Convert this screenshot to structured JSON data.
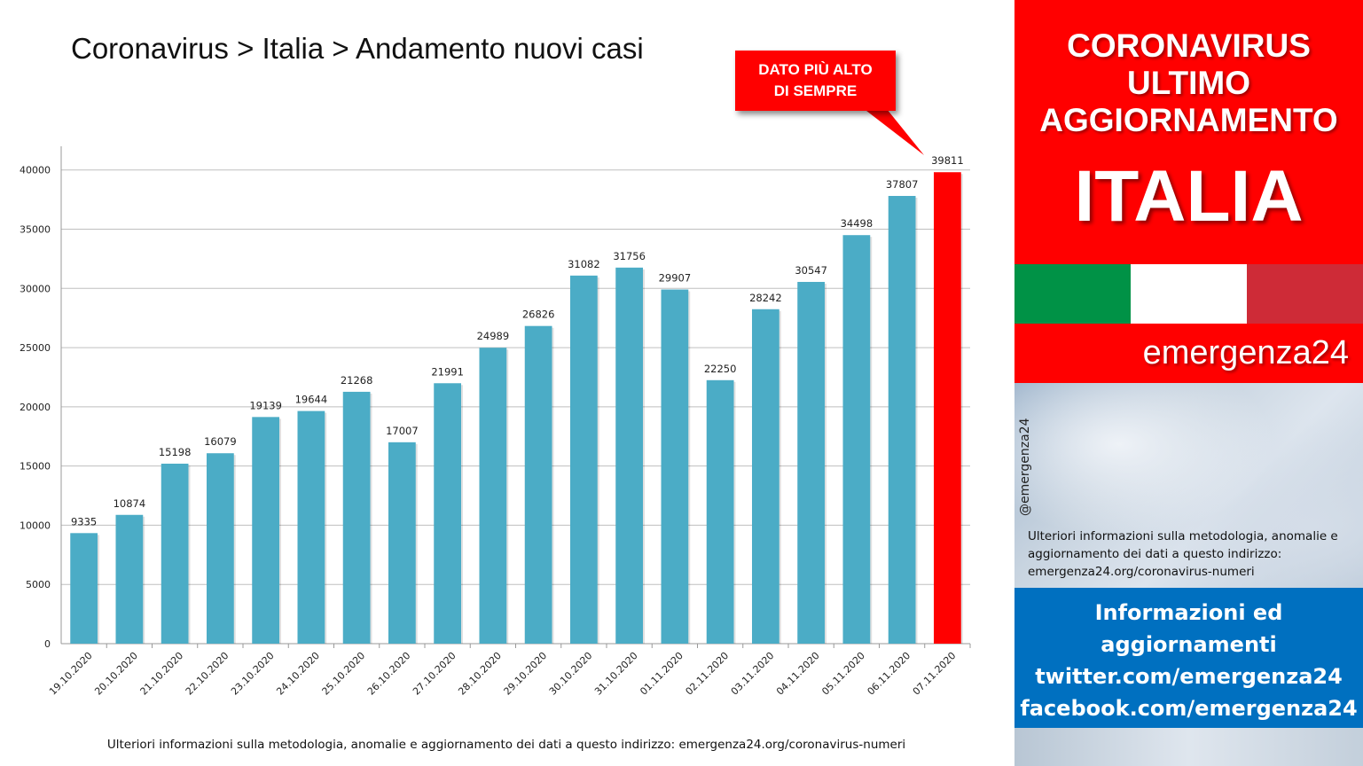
{
  "chart_data": {
    "type": "bar",
    "title": "Coronavirus > Italia > Andamento nuovi casi",
    "categories": [
      "19.10.2020",
      "20.10.2020",
      "21.10.2020",
      "22.10.2020",
      "23.10.2020",
      "24.10.2020",
      "25.10.2020",
      "26.10.2020",
      "27.10.2020",
      "28.10.2020",
      "29.10.2020",
      "30.10.2020",
      "31.10.2020",
      "01.11.2020",
      "02.11.2020",
      "03.11.2020",
      "04.11.2020",
      "05.11.2020",
      "06.11.2020",
      "07.11.2020"
    ],
    "values": [
      9335,
      10874,
      15198,
      16079,
      19139,
      19644,
      21268,
      17007,
      21991,
      24989,
      26826,
      31082,
      31756,
      29907,
      22250,
      28242,
      30547,
      34498,
      37807,
      39811
    ],
    "y_ticks": [
      0,
      5000,
      10000,
      15000,
      20000,
      25000,
      30000,
      35000,
      40000
    ],
    "ylim": [
      0,
      42000
    ],
    "grid": true,
    "bar_color": "#4bacc6",
    "highlight_index": 19,
    "highlight_color": "#ff0000",
    "annotation": {
      "line1": "DATO PIÙ ALTO",
      "line2": "DI SEMPRE"
    }
  },
  "footer_note": "Ulteriori informazioni sulla metodologia, anomalie e aggiornamento dei dati a questo indirizzo: emergenza24.org/coronavirus-numeri",
  "panel": {
    "title_lines": [
      "CORONAVIRUS",
      "ULTIMO",
      "AGGIORNAMENTO"
    ],
    "country": "ITALIA",
    "flag_colors": [
      "#009246",
      "#ffffff",
      "#ce2b37"
    ],
    "brand": "emergenza24",
    "handle": "@emergenza24",
    "note": "Ulteriori informazioni sulla metodologia, anomalie e aggiornamento dei dati a questo indirizzo: emergenza24.org/coronavirus-numeri",
    "social_lines": [
      "Informazioni ed",
      "aggiornamenti",
      "twitter.com/emergenza24",
      "facebook.com/emergenza24"
    ]
  }
}
